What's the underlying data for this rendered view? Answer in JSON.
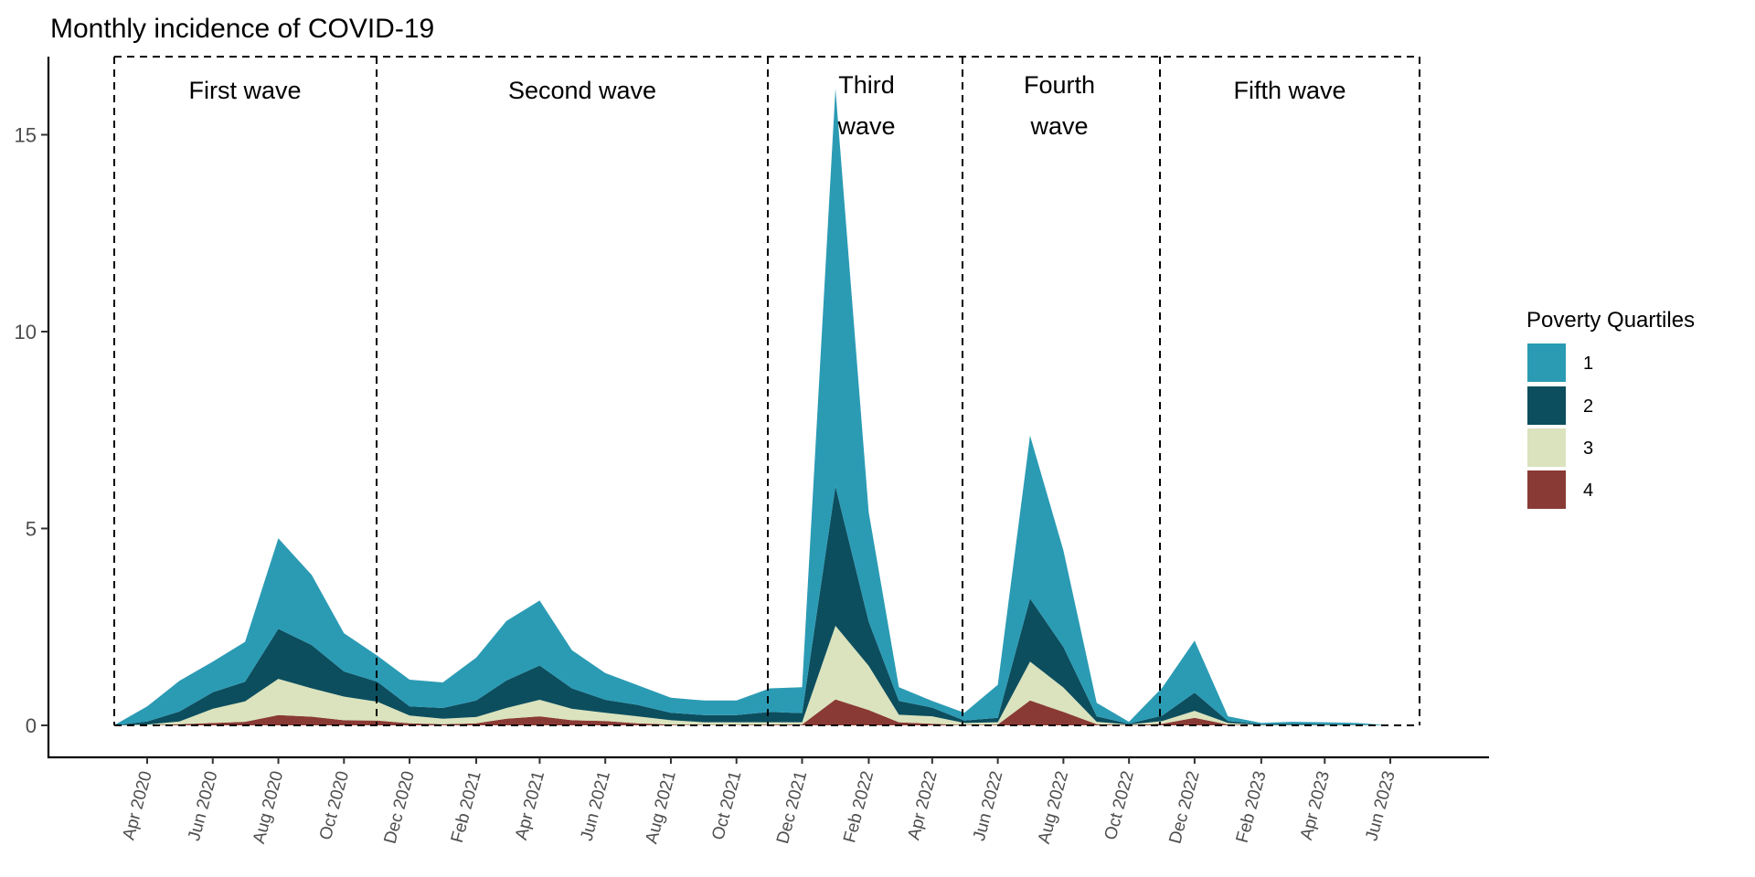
{
  "chart_data": {
    "type": "area",
    "stacked": true,
    "title": "Monthly incidence of COVID-19",
    "xlabel": "",
    "ylabel": "",
    "ylim": [
      0,
      16.5
    ],
    "yticks": [
      0,
      5,
      10,
      15
    ],
    "ytick_labels": [
      "0",
      "5",
      "10",
      "15"
    ],
    "xtick_labels": [
      "Apr 2020",
      "Jun 2020",
      "Aug 2020",
      "Oct 2020",
      "Dec 2020",
      "Feb 2021",
      "Apr 2021",
      "Jun 2021",
      "Aug 2021",
      "Oct 2021",
      "Dec 2021",
      "Feb 2022",
      "Apr 2022",
      "Jun 2022",
      "Aug 2022",
      "Oct 2022",
      "Dec 2022",
      "Feb 2023",
      "Apr 2023",
      "Jun 2023"
    ],
    "xtick_dates": [
      "2020-04-01",
      "2020-06-01",
      "2020-08-01",
      "2020-10-01",
      "2020-12-01",
      "2021-02-01",
      "2021-04-01",
      "2021-06-01",
      "2021-08-01",
      "2021-10-01",
      "2021-12-01",
      "2022-02-01",
      "2022-04-01",
      "2022-06-01",
      "2022-08-01",
      "2022-10-01",
      "2022-12-01",
      "2023-02-01",
      "2023-04-01",
      "2023-06-01"
    ],
    "x": [
      "2020-03-01",
      "2020-04-01",
      "2020-05-01",
      "2020-06-01",
      "2020-07-01",
      "2020-08-01",
      "2020-09-01",
      "2020-10-01",
      "2020-11-01",
      "2020-12-01",
      "2021-01-01",
      "2021-02-01",
      "2021-03-01",
      "2021-04-01",
      "2021-05-01",
      "2021-06-01",
      "2021-07-01",
      "2021-08-01",
      "2021-09-01",
      "2021-10-01",
      "2021-11-01",
      "2021-12-01",
      "2022-01-01",
      "2022-02-01",
      "2022-03-01",
      "2022-04-01",
      "2022-05-01",
      "2022-06-01",
      "2022-07-01",
      "2022-08-01",
      "2022-09-01",
      "2022-10-01",
      "2022-11-01",
      "2022-12-01",
      "2023-01-01",
      "2023-02-01",
      "2023-03-01",
      "2023-04-01",
      "2023-05-01",
      "2023-06-01"
    ],
    "legend": {
      "title": "Poverty Quartiles",
      "position": "right"
    },
    "series": [
      {
        "name": "1",
        "color": "#2B9BB4",
        "values": [
          0,
          0.38,
          0.78,
          0.78,
          1.01,
          2.3,
          1.78,
          0.97,
          0.66,
          0.68,
          0.65,
          1.09,
          1.51,
          1.65,
          0.97,
          0.68,
          0.5,
          0.38,
          0.37,
          0.37,
          0.6,
          0.66,
          10.1,
          2.78,
          0.35,
          0.17,
          0.2,
          0.84,
          4.14,
          2.45,
          0.34,
          0.05,
          0.71,
          1.32,
          0.12,
          0.03,
          0.05,
          0.05,
          0.04,
          0
        ]
      },
      {
        "name": "2",
        "color": "#0C4E5E",
        "values": [
          0,
          0.08,
          0.25,
          0.42,
          0.5,
          1.27,
          1.1,
          0.64,
          0.51,
          0.23,
          0.27,
          0.42,
          0.7,
          0.87,
          0.52,
          0.33,
          0.29,
          0.19,
          0.18,
          0.18,
          0.26,
          0.23,
          3.54,
          1.12,
          0.35,
          0.22,
          0.06,
          0.11,
          1.6,
          1.03,
          0.14,
          0.02,
          0.14,
          0.46,
          0.05,
          0.02,
          0.03,
          0.02,
          0.01,
          0
        ]
      },
      {
        "name": "3",
        "color": "#DAE3BD",
        "values": [
          0,
          0.02,
          0.07,
          0.36,
          0.52,
          0.92,
          0.72,
          0.6,
          0.48,
          0.2,
          0.14,
          0.16,
          0.27,
          0.42,
          0.29,
          0.21,
          0.18,
          0.11,
          0.07,
          0.07,
          0.06,
          0.06,
          1.87,
          1.12,
          0.19,
          0.19,
          0.05,
          0.06,
          0.99,
          0.62,
          0.06,
          0.01,
          0.07,
          0.18,
          0.04,
          0.01,
          0.01,
          0.01,
          0.01,
          0
        ]
      },
      {
        "name": "4",
        "color": "#8A3A35",
        "values": [
          0,
          0,
          0.03,
          0.06,
          0.09,
          0.26,
          0.22,
          0.13,
          0.12,
          0.05,
          0.03,
          0.05,
          0.17,
          0.23,
          0.13,
          0.11,
          0.05,
          0.02,
          0.01,
          0.01,
          0.02,
          0.02,
          0.66,
          0.39,
          0.08,
          0.04,
          0.01,
          0.02,
          0.63,
          0.34,
          0.03,
          0.01,
          0.04,
          0.19,
          0.02,
          0,
          0,
          0,
          0,
          0
        ]
      }
    ],
    "annotations": [
      {
        "label": "First wave",
        "lines": [
          "First wave"
        ],
        "start": "2020-03-01",
        "end": "2020-11-01"
      },
      {
        "label": "Second wave",
        "lines": [
          "Second wave"
        ],
        "start": "2020-11-01",
        "end": "2021-11-01"
      },
      {
        "label": "Third wave",
        "lines": [
          "Third",
          "wave"
        ],
        "start": "2021-11-01",
        "end": "2022-05-01"
      },
      {
        "label": "Fourth wave",
        "lines": [
          "Fourth",
          "wave"
        ],
        "start": "2022-05-01",
        "end": "2022-11-01"
      },
      {
        "label": "Fifth wave",
        "lines": [
          "Fifth wave"
        ],
        "start": "2022-11-01",
        "end": "2023-07-01"
      }
    ],
    "grid": false
  }
}
